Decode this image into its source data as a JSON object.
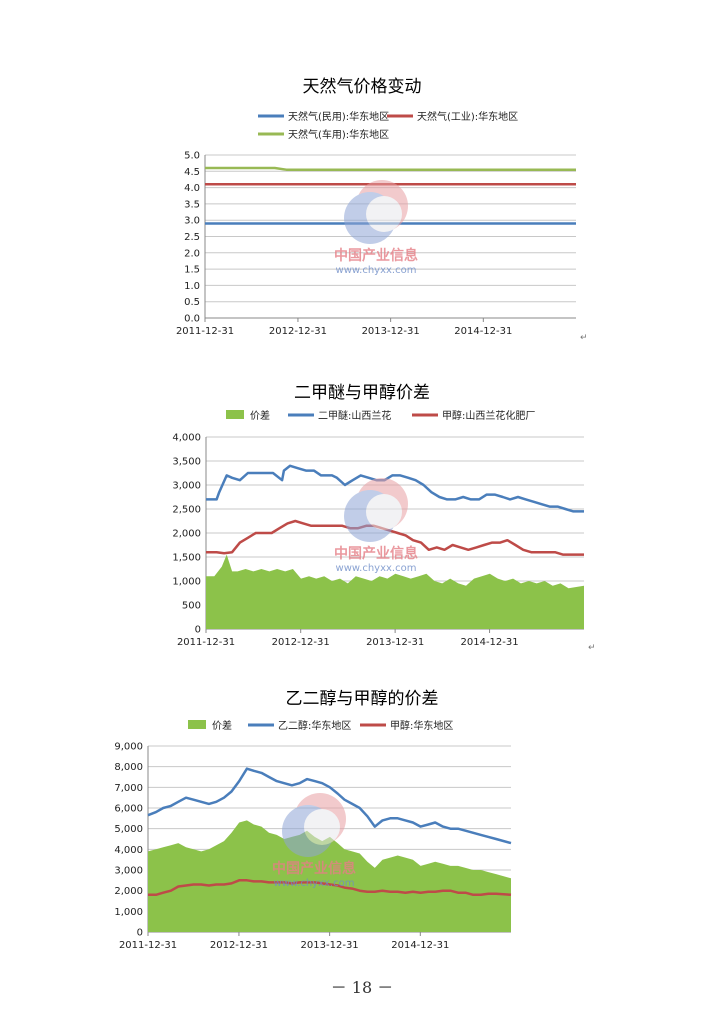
{
  "page_number": "－ 18 －",
  "watermark": {
    "text": "中国产业信息",
    "url": "www.chyxx.com"
  },
  "chart_data": [
    {
      "type": "line",
      "title": "天然气价格变动",
      "x_ticks": [
        "2011-12-31",
        "2012-12-31",
        "2013-12-31",
        "2014-12-31"
      ],
      "x_range": [
        "2011-12-31",
        "2015-12-31"
      ],
      "ylim": [
        0,
        5
      ],
      "y_ticks": [
        "0.0",
        "0.5",
        "1.0",
        "1.5",
        "2.0",
        "2.5",
        "3.0",
        "3.5",
        "4.0",
        "4.5",
        "5.0"
      ],
      "grid": true,
      "legend_position": "top",
      "series": [
        {
          "name": "天然气(民用):华东地区",
          "color": "#4a7ebb",
          "dates": [
            "2011-12-31",
            "2015-12-31"
          ],
          "values": [
            2.9,
            2.9
          ]
        },
        {
          "name": "天然气(工业):华东地区",
          "color": "#be4b48",
          "dates": [
            "2011-12-31",
            "2015-12-31"
          ],
          "values": [
            4.1,
            4.1
          ]
        },
        {
          "name": "天然气(车用):华东地区",
          "color": "#98b954",
          "dates": [
            "2011-12-31",
            "2012-10-01",
            "2012-11-15",
            "2015-12-31"
          ],
          "values": [
            4.6,
            4.6,
            4.55,
            4.55
          ]
        }
      ]
    },
    {
      "type": "line-area",
      "title": "二甲醚与甲醇价差",
      "x_ticks": [
        "2011-12-31",
        "2012-12-31",
        "2013-12-31",
        "2014-12-31"
      ],
      "x_range": [
        "2011-12-31",
        "2015-12-31"
      ],
      "ylim": [
        0,
        4000
      ],
      "y_ticks": [
        "0",
        "500",
        "1,000",
        "1,500",
        "2,000",
        "2,500",
        "3,000",
        "3,500",
        "4,000"
      ],
      "grid": true,
      "legend_position": "top",
      "series": [
        {
          "name": "价差",
          "kind": "area",
          "color": "#8cc24a",
          "dates": [
            "2011-12-31",
            "2012-02-01",
            "2012-03-01",
            "2012-03-20",
            "2012-04-10",
            "2012-05-01",
            "2012-06-01",
            "2012-07-01",
            "2012-08-01",
            "2012-09-01",
            "2012-10-01",
            "2012-11-01",
            "2012-12-01",
            "2013-01-01",
            "2013-02-01",
            "2013-03-01",
            "2013-04-01",
            "2013-05-01",
            "2013-06-01",
            "2013-07-01",
            "2013-08-01",
            "2013-09-01",
            "2013-10-01",
            "2013-11-01",
            "2013-12-01",
            "2014-01-01",
            "2014-02-01",
            "2014-03-01",
            "2014-04-01",
            "2014-05-01",
            "2014-06-01",
            "2014-07-01",
            "2014-08-01",
            "2014-09-01",
            "2014-10-01",
            "2014-11-01",
            "2014-12-01",
            "2015-01-01",
            "2015-02-01",
            "2015-03-01",
            "2015-04-01",
            "2015-05-01",
            "2015-06-01",
            "2015-07-01",
            "2015-08-01",
            "2015-09-01",
            "2015-10-01",
            "2015-11-01",
            "2015-12-31"
          ],
          "values": [
            1100,
            1100,
            1300,
            1550,
            1200,
            1200,
            1250,
            1200,
            1250,
            1200,
            1250,
            1200,
            1250,
            1050,
            1100,
            1050,
            1100,
            1000,
            1050,
            950,
            1100,
            1050,
            1000,
            1100,
            1050,
            1150,
            1100,
            1050,
            1100,
            1150,
            1000,
            950,
            1050,
            950,
            900,
            1050,
            1100,
            1150,
            1050,
            1000,
            1050,
            950,
            1000,
            950,
            1000,
            900,
            950,
            850,
            900
          ]
        },
        {
          "name": "二甲醚:山西兰花",
          "kind": "line",
          "color": "#4a7ebb",
          "dates": [
            "2011-12-31",
            "2012-02-10",
            "2012-02-20",
            "2012-03-20",
            "2012-04-10",
            "2012-05-10",
            "2012-06-10",
            "2012-09-15",
            "2012-10-20",
            "2012-10-27",
            "2012-11-20",
            "2012-12-20",
            "2013-01-20",
            "2013-02-20",
            "2013-03-20",
            "2013-05-01",
            "2013-05-20",
            "2013-06-20",
            "2013-07-20",
            "2013-08-20",
            "2013-09-20",
            "2013-10-20",
            "2013-11-20",
            "2013-12-20",
            "2014-01-20",
            "2014-02-20",
            "2014-03-20",
            "2014-04-20",
            "2014-05-20",
            "2014-06-20",
            "2014-07-20",
            "2014-08-20",
            "2014-09-20",
            "2014-10-20",
            "2014-11-20",
            "2014-12-20",
            "2015-01-20",
            "2015-02-20",
            "2015-03-20",
            "2015-04-20",
            "2015-05-20",
            "2015-06-20",
            "2015-07-20",
            "2015-08-20",
            "2015-09-20",
            "2015-10-20",
            "2015-11-20",
            "2015-12-31"
          ],
          "values": [
            2700,
            2700,
            2850,
            3200,
            3150,
            3100,
            3250,
            3250,
            3100,
            3300,
            3400,
            3350,
            3300,
            3300,
            3200,
            3200,
            3150,
            3000,
            3100,
            3200,
            3150,
            3100,
            3100,
            3200,
            3200,
            3150,
            3100,
            3000,
            2850,
            2750,
            2700,
            2700,
            2750,
            2700,
            2700,
            2800,
            2800,
            2750,
            2700,
            2750,
            2700,
            2650,
            2600,
            2550,
            2550,
            2500,
            2450,
            2450
          ]
        },
        {
          "name": "甲醇:山西兰花化肥厂",
          "kind": "line",
          "color": "#be4b48",
          "dates": [
            "2011-12-31",
            "2012-02-10",
            "2012-03-10",
            "2012-04-10",
            "2012-05-10",
            "2012-06-10",
            "2012-07-10",
            "2012-08-10",
            "2012-09-10",
            "2012-10-10",
            "2012-11-10",
            "2012-12-10",
            "2013-01-10",
            "2013-02-10",
            "2013-03-10",
            "2013-04-10",
            "2013-05-10",
            "2013-06-10",
            "2013-07-10",
            "2013-08-10",
            "2013-09-10",
            "2013-10-10",
            "2013-11-10",
            "2013-12-10",
            "2014-01-10",
            "2014-02-10",
            "2014-03-10",
            "2014-04-10",
            "2014-05-10",
            "2014-06-10",
            "2014-07-10",
            "2014-08-10",
            "2014-09-10",
            "2014-10-10",
            "2014-11-10",
            "2014-12-10",
            "2015-01-10",
            "2015-02-10",
            "2015-03-10",
            "2015-04-10",
            "2015-05-10",
            "2015-06-10",
            "2015-07-10",
            "2015-08-10",
            "2015-09-10",
            "2015-10-10",
            "2015-11-10",
            "2015-12-31"
          ],
          "values": [
            1600,
            1600,
            1580,
            1600,
            1800,
            1900,
            2000,
            2000,
            2000,
            2100,
            2200,
            2250,
            2200,
            2150,
            2150,
            2150,
            2150,
            2150,
            2100,
            2100,
            2150,
            2150,
            2100,
            2050,
            2000,
            1950,
            1850,
            1800,
            1650,
            1700,
            1650,
            1750,
            1700,
            1650,
            1700,
            1750,
            1800,
            1800,
            1850,
            1750,
            1650,
            1600,
            1600,
            1600,
            1600,
            1550,
            1550,
            1550
          ]
        }
      ]
    },
    {
      "type": "line-area",
      "title": "乙二醇与甲醇的价差",
      "x_ticks": [
        "2011-12-31",
        "2012-12-31",
        "2013-12-31",
        "2014-12-31"
      ],
      "x_range": [
        "2011-12-31",
        "2015-12-31"
      ],
      "ylim": [
        0,
        9000
      ],
      "y_ticks": [
        "0",
        "1,000",
        "2,000",
        "3,000",
        "4,000",
        "5,000",
        "6,000",
        "7,000",
        "8,000",
        "9,000"
      ],
      "grid": true,
      "legend_position": "top",
      "series": [
        {
          "name": "价差",
          "kind": "area",
          "color": "#8cc24a",
          "dates": [
            "2011-12-31",
            "2012-02-01",
            "2012-03-01",
            "2012-04-01",
            "2012-05-01",
            "2012-06-01",
            "2012-07-01",
            "2012-08-01",
            "2012-09-01",
            "2012-10-01",
            "2012-11-01",
            "2012-12-01",
            "2013-01-01",
            "2013-02-01",
            "2013-03-01",
            "2013-04-01",
            "2013-05-01",
            "2013-06-01",
            "2013-07-01",
            "2013-08-01",
            "2013-09-01",
            "2013-10-01",
            "2013-11-01",
            "2013-12-01",
            "2014-01-01",
            "2014-02-01",
            "2014-03-01",
            "2014-04-01",
            "2014-05-01",
            "2014-06-01",
            "2014-07-01",
            "2014-08-01",
            "2014-09-01",
            "2014-10-01",
            "2014-11-01",
            "2014-12-01",
            "2015-01-01",
            "2015-02-01",
            "2015-03-01",
            "2015-04-01",
            "2015-05-01",
            "2015-06-01",
            "2015-07-01",
            "2015-08-01",
            "2015-09-01",
            "2015-10-01",
            "2015-11-01",
            "2015-12-31"
          ],
          "values": [
            3900,
            4000,
            4100,
            4200,
            4300,
            4100,
            4000,
            3900,
            4000,
            4200,
            4400,
            4800,
            5300,
            5400,
            5200,
            5100,
            4800,
            4700,
            4500,
            4600,
            4700,
            4900,
            4600,
            4400,
            4600,
            4300,
            4000,
            3900,
            3800,
            3400,
            3100,
            3500,
            3600,
            3700,
            3600,
            3500,
            3200,
            3300,
            3400,
            3300,
            3200,
            3200,
            3100,
            3000,
            3000,
            2900,
            2800,
            2600
          ]
        },
        {
          "name": "乙二醇:华东地区",
          "kind": "line",
          "color": "#4a7ebb",
          "dates": [
            "2011-12-31",
            "2012-02-01",
            "2012-03-01",
            "2012-04-01",
            "2012-05-01",
            "2012-06-01",
            "2012-07-01",
            "2012-08-01",
            "2012-09-01",
            "2012-10-01",
            "2012-11-01",
            "2012-12-01",
            "2013-01-01",
            "2013-02-01",
            "2013-03-01",
            "2013-04-01",
            "2013-05-01",
            "2013-06-01",
            "2013-07-01",
            "2013-08-01",
            "2013-09-01",
            "2013-10-01",
            "2013-11-01",
            "2013-12-01",
            "2014-01-01",
            "2014-02-01",
            "2014-03-01",
            "2014-04-01",
            "2014-05-01",
            "2014-06-01",
            "2014-07-01",
            "2014-08-01",
            "2014-09-01",
            "2014-10-01",
            "2014-11-01",
            "2014-12-01",
            "2015-01-01",
            "2015-02-01",
            "2015-03-01",
            "2015-04-01",
            "2015-05-01",
            "2015-06-01",
            "2015-07-01",
            "2015-08-01",
            "2015-09-01",
            "2015-10-01",
            "2015-11-01",
            "2015-12-31"
          ],
          "values": [
            5650,
            5800,
            6000,
            6100,
            6300,
            6500,
            6400,
            6300,
            6200,
            6300,
            6500,
            6800,
            7300,
            7900,
            7800,
            7700,
            7500,
            7300,
            7200,
            7100,
            7200,
            7400,
            7300,
            7200,
            7000,
            6700,
            6400,
            6200,
            6000,
            5600,
            5100,
            5400,
            5500,
            5500,
            5400,
            5300,
            5100,
            5200,
            5300,
            5100,
            5000,
            5000,
            4900,
            4800,
            4700,
            4600,
            4500,
            4300
          ]
        },
        {
          "name": "甲醇:华东地区",
          "kind": "line",
          "color": "#be4b48",
          "dates": [
            "2011-12-31",
            "2012-02-01",
            "2012-03-01",
            "2012-04-01",
            "2012-05-01",
            "2012-06-01",
            "2012-07-01",
            "2012-08-01",
            "2012-09-01",
            "2012-10-01",
            "2012-11-01",
            "2012-12-01",
            "2013-01-01",
            "2013-02-01",
            "2013-03-01",
            "2013-04-01",
            "2013-05-01",
            "2013-06-01",
            "2013-07-01",
            "2013-08-01",
            "2013-09-01",
            "2013-10-01",
            "2013-11-01",
            "2013-12-01",
            "2014-01-01",
            "2014-02-01",
            "2014-03-01",
            "2014-04-01",
            "2014-05-01",
            "2014-06-01",
            "2014-07-01",
            "2014-08-01",
            "2014-09-01",
            "2014-10-01",
            "2014-11-01",
            "2014-12-01",
            "2015-01-01",
            "2015-02-01",
            "2015-03-01",
            "2015-04-01",
            "2015-05-01",
            "2015-06-01",
            "2015-07-01",
            "2015-08-01",
            "2015-09-01",
            "2015-10-01",
            "2015-11-01",
            "2015-12-31"
          ],
          "values": [
            1800,
            1800,
            1900,
            2000,
            2200,
            2250,
            2300,
            2300,
            2250,
            2300,
            2300,
            2350,
            2500,
            2500,
            2450,
            2450,
            2400,
            2400,
            2400,
            2350,
            2400,
            2400,
            2400,
            2350,
            2300,
            2250,
            2150,
            2100,
            2000,
            1950,
            1950,
            2000,
            1950,
            1950,
            1900,
            1950,
            1900,
            1950,
            1950,
            2000,
            2000,
            1900,
            1900,
            1800,
            1800,
            1850,
            1850,
            1800
          ]
        }
      ]
    }
  ]
}
